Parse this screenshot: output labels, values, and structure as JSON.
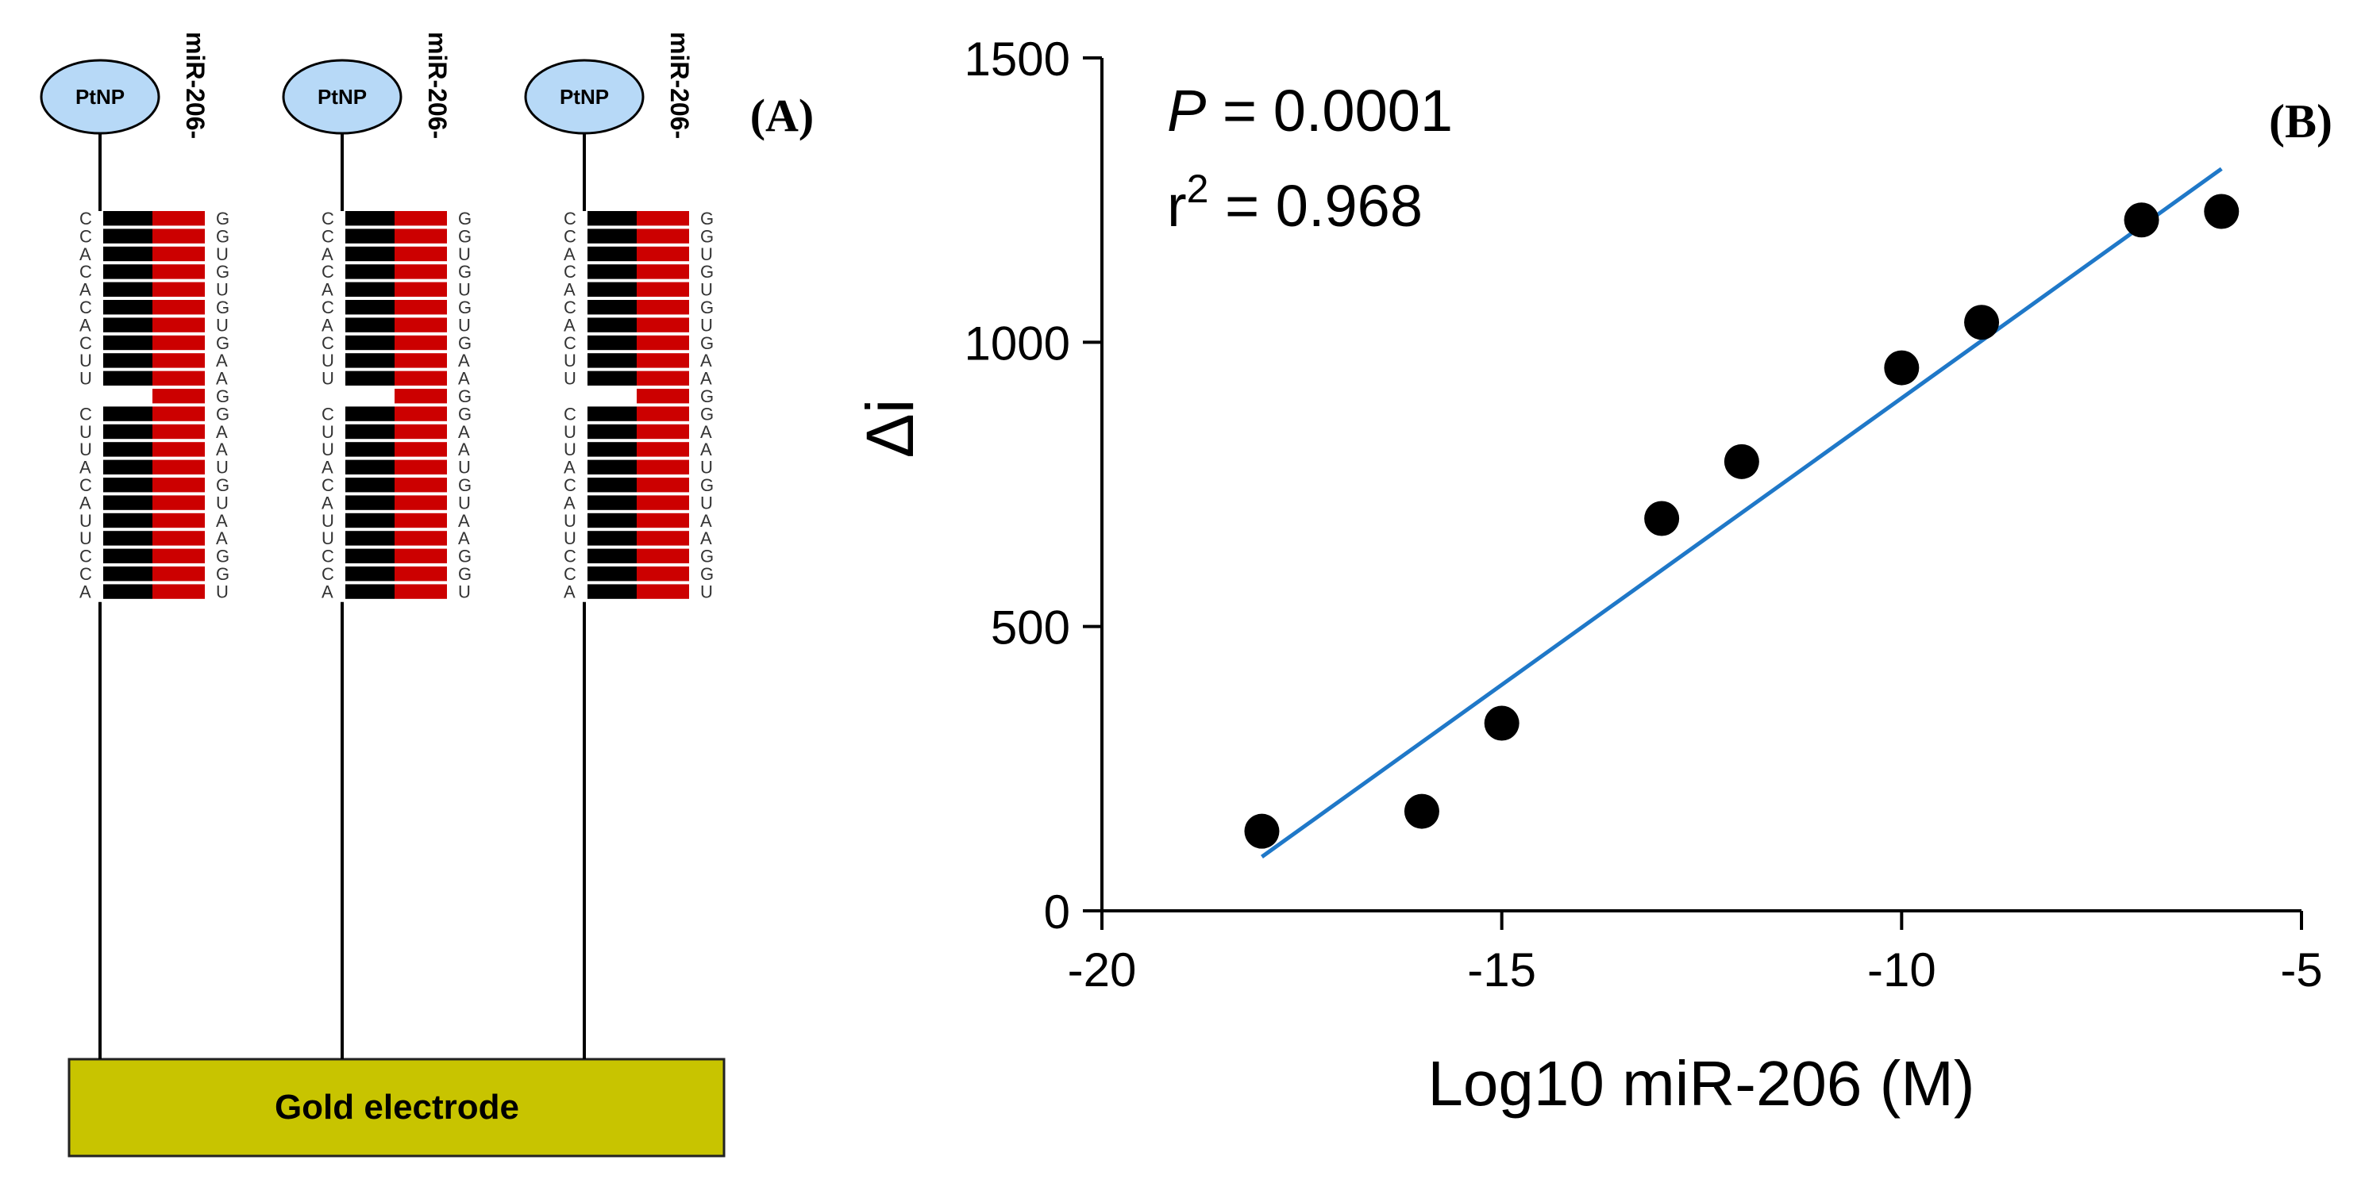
{
  "panel_a": {
    "panel_label": "(A)",
    "nanoparticle_label": "PtNP",
    "strand_label": "miR-206-",
    "electrode_label": "Gold electrode",
    "probe_seq_upper": [
      "C",
      "C",
      "A",
      "C",
      "A",
      "C",
      "A",
      "C",
      "U",
      "U"
    ],
    "probe_seq_lower": [
      "C",
      "U",
      "U",
      "A",
      "C",
      "A",
      "U",
      "U",
      "C",
      "C",
      "A"
    ],
    "target_seq": [
      "G",
      "G",
      "U",
      "G",
      "U",
      "G",
      "U",
      "G",
      "A",
      "A",
      "G",
      "G",
      "A",
      "A",
      "U",
      "G",
      "U",
      "A",
      "A",
      "G",
      "G",
      "U"
    ],
    "colors": {
      "probe": "#000000",
      "target": "#cc0000",
      "nanoparticle": "#b7d9f7",
      "electrode": "#c8c400"
    }
  },
  "chart_data": {
    "type": "scatter",
    "panel_label": "(B)",
    "xlabel": "Log10 miR-206 (M)",
    "ylabel": "Δi",
    "xlim": [
      -20,
      -5
    ],
    "ylim": [
      0,
      1500
    ],
    "xticks": [
      -20,
      -15,
      -10,
      -5
    ],
    "yticks": [
      0,
      500,
      1000,
      1500
    ],
    "x": [
      -18,
      -16,
      -15,
      -13,
      -12,
      -10,
      -9,
      -7,
      -6
    ],
    "y": [
      140,
      175,
      330,
      690,
      790,
      955,
      1035,
      1215,
      1230
    ],
    "fit_line": {
      "x": [
        -18,
        -6
      ],
      "y": [
        95,
        1305
      ],
      "color": "#1f78c8"
    },
    "stats": {
      "p_label": "P",
      "p_value": " = 0.0001",
      "r2_label": "r",
      "r2_exp": "2",
      "r2_value": " = 0.968"
    },
    "marker_color": "#000000"
  }
}
